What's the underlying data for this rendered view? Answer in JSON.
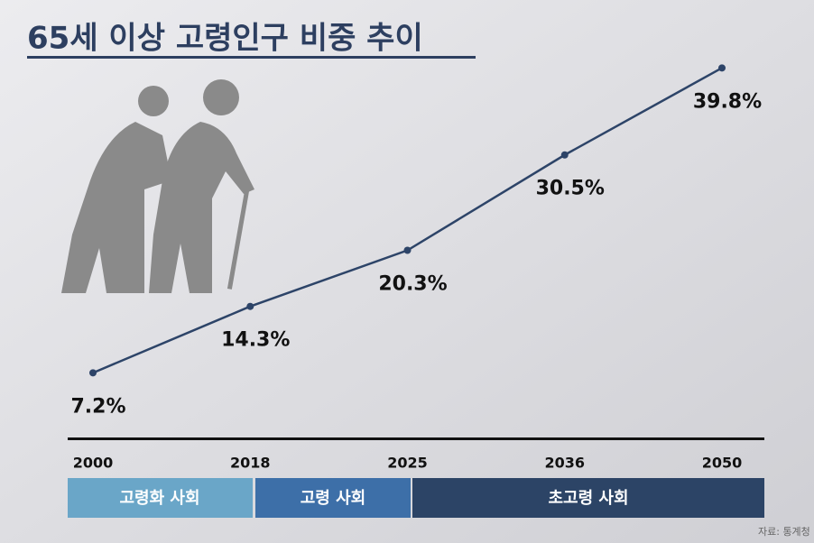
{
  "chart_data": {
    "type": "line",
    "title": "65세 이상 고령인구 비중 추이",
    "categories": [
      "2000",
      "2018",
      "2025",
      "2036",
      "2050"
    ],
    "values": [
      7.2,
      14.3,
      20.3,
      30.5,
      39.8
    ],
    "value_labels": [
      "7.2%",
      "14.3%",
      "20.3%",
      "30.5%",
      "39.8%"
    ],
    "color": "#2d4468",
    "ylim": [
      0,
      45
    ],
    "stages": [
      "고령화 사회",
      "고령 사회",
      "초고령 사회"
    ],
    "source": "자료: 통계청"
  }
}
